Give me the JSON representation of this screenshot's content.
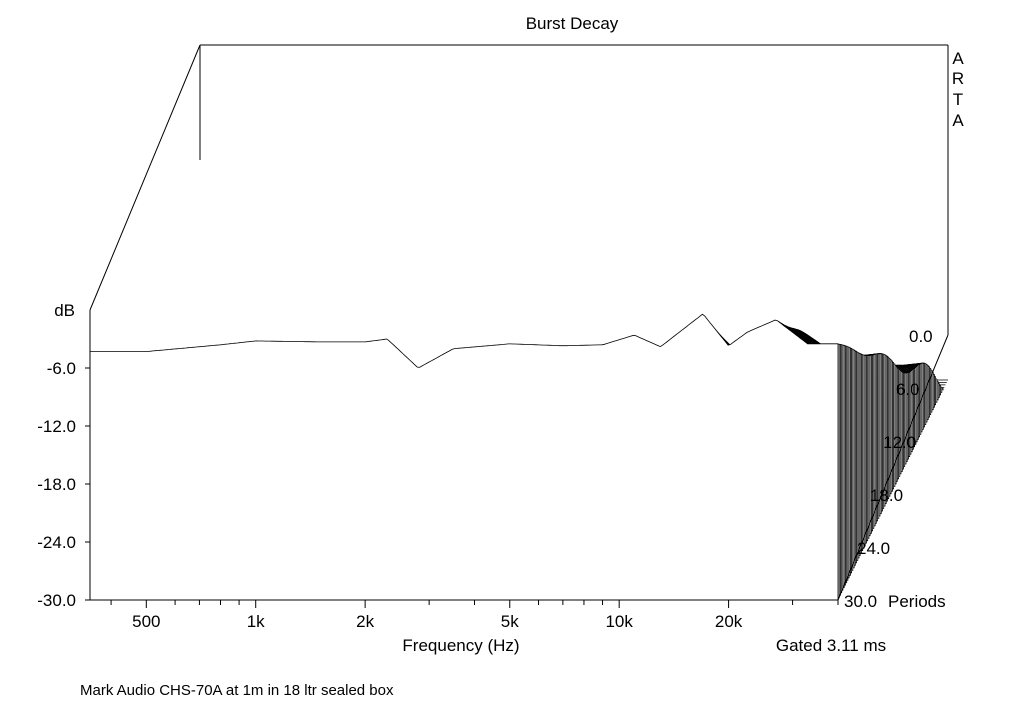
{
  "chart_data": {
    "type": "waterfall",
    "title": "Burst Decay",
    "brand_letters": [
      "A",
      "R",
      "T",
      "A"
    ],
    "xlabel": "Frequency (Hz)",
    "ylabel": "dB",
    "zlabel": "Periods",
    "x_scale": "log",
    "x_range_hz": [
      350,
      40000
    ],
    "x_ticks": [
      {
        "value": 500,
        "label": "500"
      },
      {
        "value": 1000,
        "label": "1k"
      },
      {
        "value": 2000,
        "label": "2k"
      },
      {
        "value": 5000,
        "label": "5k"
      },
      {
        "value": 10000,
        "label": "10k"
      },
      {
        "value": 20000,
        "label": "20k"
      }
    ],
    "y_range_db": [
      -30,
      0
    ],
    "y_ticks": [
      "-6.0",
      "-12.0",
      "-18.0",
      "-24.0",
      "-30.0"
    ],
    "z_range_periods": [
      0,
      30
    ],
    "z_ticks": [
      {
        "value": 0,
        "label": "0.0"
      },
      {
        "value": 6,
        "label": "6.0"
      },
      {
        "value": 12,
        "label": "12.0"
      },
      {
        "value": 18,
        "label": "18.0"
      },
      {
        "value": 24,
        "label": "24.0"
      },
      {
        "value": 30,
        "label": "30.0"
      }
    ],
    "gated": "Gated 3.11 ms",
    "front_slice_db": [
      [
        350,
        -4.3
      ],
      [
        500,
        -4.3
      ],
      [
        800,
        -3.6
      ],
      [
        1000,
        -3.2
      ],
      [
        1500,
        -3.3
      ],
      [
        2000,
        -3.3
      ],
      [
        2300,
        -3.0
      ],
      [
        2800,
        -6.0
      ],
      [
        3500,
        -4.0
      ],
      [
        5000,
        -3.5
      ],
      [
        7000,
        -3.7
      ],
      [
        9000,
        -3.6
      ],
      [
        11000,
        -2.6
      ],
      [
        13000,
        -3.8
      ],
      [
        17000,
        -0.4
      ],
      [
        20000,
        -3.7
      ],
      [
        22500,
        -2.3
      ],
      [
        27000,
        -1.0
      ],
      [
        33000,
        -3.5
      ],
      [
        40000,
        -3.5
      ]
    ],
    "decay_periods_to_floor": [
      [
        350,
        4
      ],
      [
        2000,
        4
      ],
      [
        2700,
        5
      ],
      [
        3000,
        6
      ],
      [
        3500,
        4
      ],
      [
        9000,
        4
      ],
      [
        11000,
        8
      ],
      [
        14000,
        12
      ],
      [
        17000,
        18
      ],
      [
        20000,
        26
      ],
      [
        25000,
        30
      ],
      [
        32000,
        30
      ],
      [
        40000,
        30
      ]
    ],
    "floor_db": -30,
    "slices": 90
  },
  "caption": "Mark Audio CHS-70A at 1m in 18 ltr sealed box"
}
